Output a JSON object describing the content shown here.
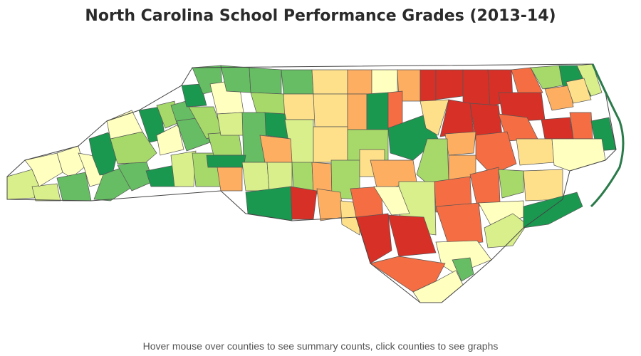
{
  "title": "North Carolina School Performance Grades (2013-14)",
  "footer": "Hover mouse over counties to see summary counts, click counties to see graphs",
  "palette": {
    "dark_red": "#d73027",
    "red_orange": "#f46d43",
    "orange": "#fdae61",
    "light_orange": "#fee08b",
    "pale_yellow": "#ffffbf",
    "pale_green": "#d9ef8b",
    "light_green": "#a6d96a",
    "green": "#66bd63",
    "dark_green": "#1a9850"
  }
}
